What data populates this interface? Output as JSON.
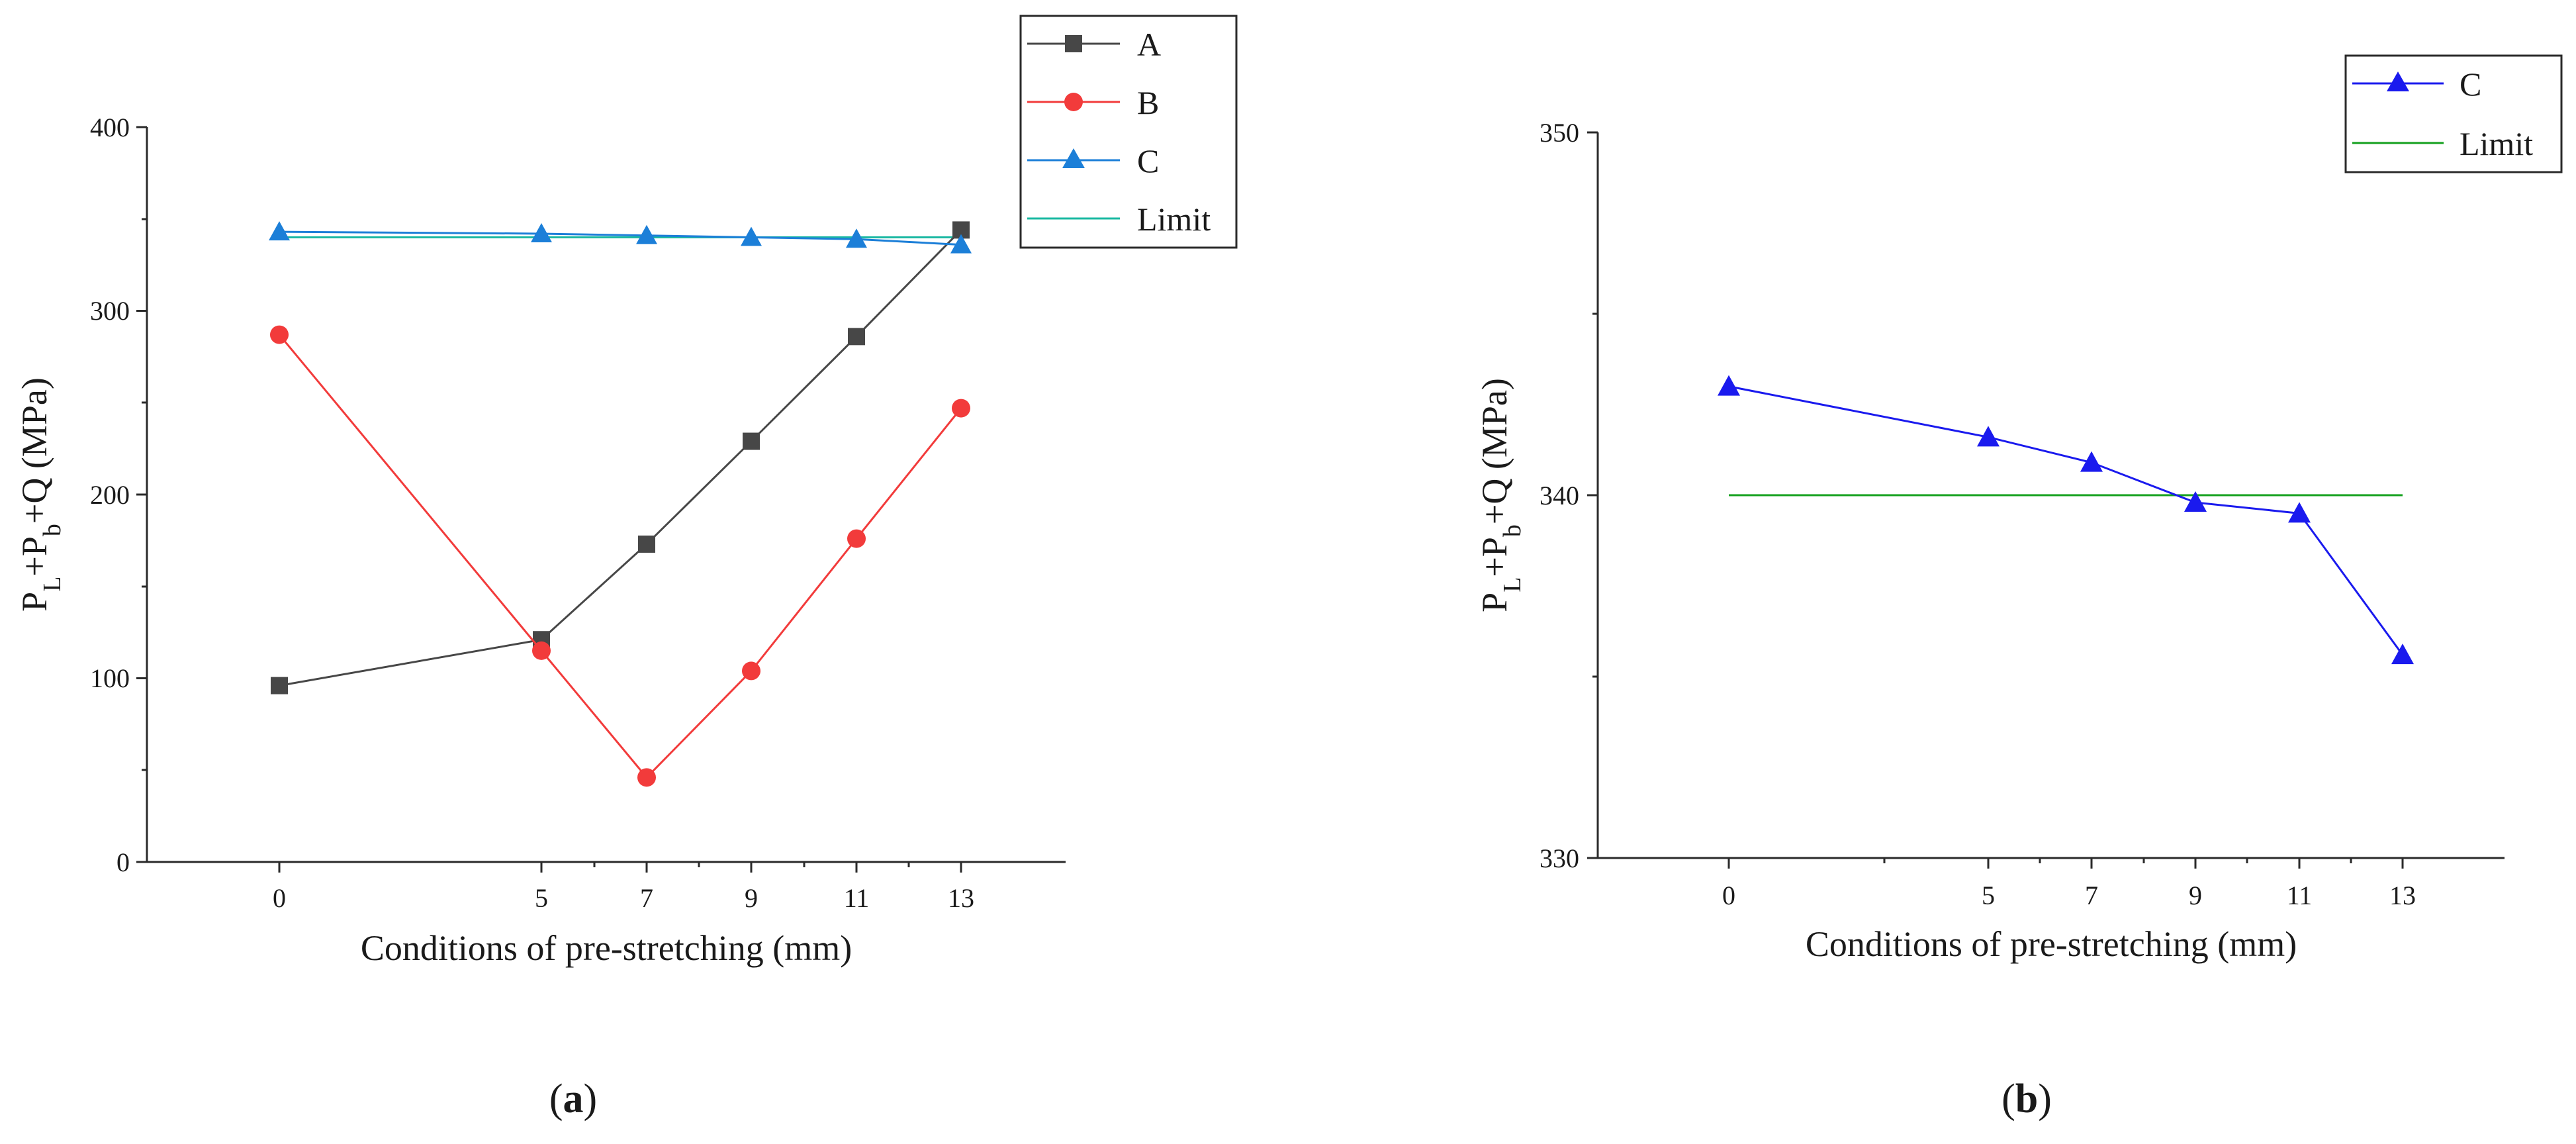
{
  "chart_data": [
    {
      "id": "a",
      "type": "line",
      "caption": {
        "open": "(",
        "letter": "a",
        "close": ")"
      },
      "xlabel": "Conditions of pre-stretching (mm)",
      "ylabel": {
        "p1": "P",
        "sub1": "L",
        "p2": "+P",
        "sub2": "b",
        "p3": "+Q (MPa)"
      },
      "x": [
        0,
        5,
        7,
        9,
        11,
        13
      ],
      "x_tick_labels": [
        "0",
        "5",
        "7",
        "9",
        "11",
        "13"
      ],
      "y_ticks": [
        0,
        100,
        200,
        300,
        400
      ],
      "y_tick_labels": [
        "0",
        "100",
        "200",
        "300",
        "400"
      ],
      "ylim": [
        0,
        400
      ],
      "legend_position": "top-right",
      "series": [
        {
          "name": "A",
          "color": "#474747",
          "marker": "square",
          "values": [
            96,
            121,
            173,
            229,
            286,
            344
          ]
        },
        {
          "name": "B",
          "color": "#f23b3b",
          "marker": "circle",
          "values": [
            287,
            115,
            46,
            104,
            176,
            247
          ]
        },
        {
          "name": "C",
          "color": "#1c7fd8",
          "marker": "triangle",
          "values": [
            343,
            342,
            341,
            340,
            339,
            336
          ]
        },
        {
          "name": "Limit",
          "color": "#1ab8a2",
          "marker": "none",
          "values": [
            340,
            340,
            340,
            340,
            340,
            340
          ]
        }
      ]
    },
    {
      "id": "b",
      "type": "line",
      "caption": {
        "open": "(",
        "letter": "b",
        "close": ")"
      },
      "xlabel": "Conditions of pre-stretching (mm)",
      "ylabel": {
        "p1": "P",
        "sub1": "L",
        "p2": "+P",
        "sub2": "b",
        "p3": "+Q (MPa)"
      },
      "x": [
        0,
        5,
        7,
        9,
        11,
        13
      ],
      "x_tick_labels": [
        "0",
        "5",
        "7",
        "9",
        "11",
        "13"
      ],
      "y_ticks": [
        330,
        340,
        350
      ],
      "y_tick_labels": [
        "330",
        "340",
        "350"
      ],
      "ylim": [
        330,
        350
      ],
      "legend_position": "top-right",
      "series": [
        {
          "name": "C",
          "color": "#1a1aee",
          "marker": "triangle",
          "values": [
            343.0,
            341.6,
            340.9,
            339.8,
            339.5,
            335.6
          ]
        },
        {
          "name": "Limit",
          "color": "#14a01e",
          "marker": "none",
          "values": [
            340,
            340,
            340,
            340,
            340,
            340
          ]
        }
      ]
    }
  ]
}
